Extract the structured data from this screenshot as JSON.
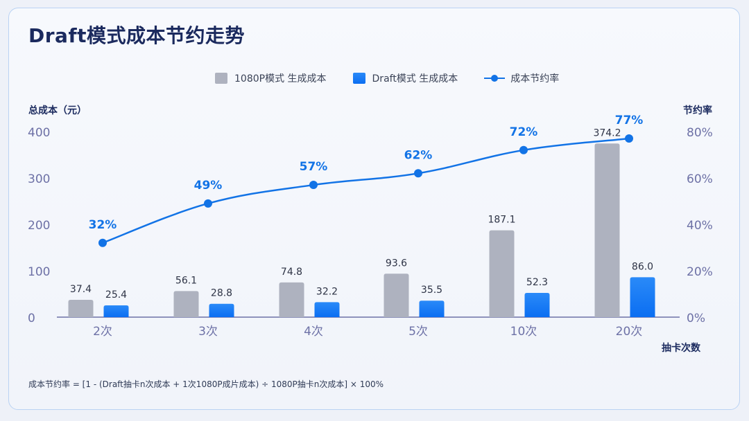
{
  "title": "Draft模式成本节约走势",
  "legend": {
    "series1": "1080P模式 生成成本",
    "series2": "Draft模式 生成成本",
    "series3": "成本节约率"
  },
  "formula": "成本节约率 = [1 - (Draft抽卡n次成本 + 1次1080P成片成本) ÷ 1080P抽卡n次成本] × 100%",
  "colors": {
    "gray_bar": "#aeb2bf",
    "blue_bar": "#0b6ef2",
    "line": "#1273e6",
    "title": "#1b2a5e",
    "axis": "#6d71a6"
  },
  "chart_data": {
    "type": "bar",
    "title": "Draft模式成本节约走势",
    "xlabel": "抽卡次数",
    "ylabel": "总成本（元）",
    "ylabel_right": "节约率",
    "categories": [
      "2次",
      "3次",
      "4次",
      "5次",
      "10次",
      "20次"
    ],
    "ylim": [
      0,
      400
    ],
    "yticks": [
      0,
      100,
      200,
      300,
      400
    ],
    "ylim_right": [
      0,
      80
    ],
    "yticks_right": [
      "0%",
      "20%",
      "40%",
      "60%",
      "80%"
    ],
    "series": [
      {
        "name": "1080P模式 生成成本",
        "type": "bar",
        "values": [
          37.4,
          56.1,
          74.8,
          93.6,
          187.1,
          374.2
        ],
        "labels": [
          "37.4",
          "56.1",
          "74.8",
          "93.6",
          "187.1",
          "374.2"
        ]
      },
      {
        "name": "Draft模式 生成成本",
        "type": "bar",
        "values": [
          25.4,
          28.8,
          32.2,
          35.5,
          52.3,
          86.0
        ],
        "labels": [
          "25.4",
          "28.8",
          "32.2",
          "35.5",
          "52.3",
          "86.0"
        ]
      },
      {
        "name": "成本节约率",
        "type": "line",
        "axis": "right",
        "values": [
          32,
          49,
          57,
          62,
          72,
          77
        ],
        "labels": [
          "32%",
          "49%",
          "57%",
          "62%",
          "72%",
          "77%"
        ]
      }
    ],
    "legend_position": "top",
    "grid": false
  }
}
